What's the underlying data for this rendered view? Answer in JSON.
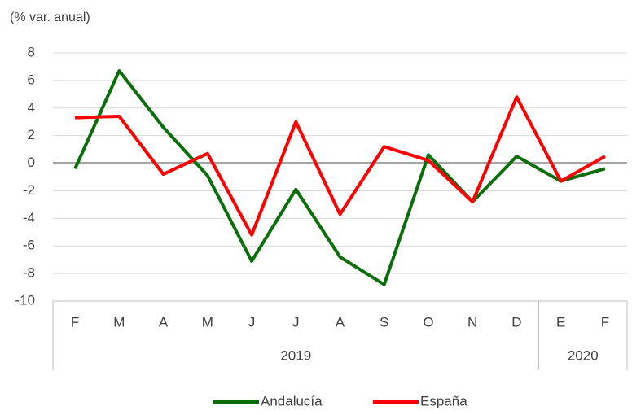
{
  "chart_data": {
    "type": "line",
    "y_axis_label": "(% var. anual)",
    "categories": [
      "F",
      "M",
      "A",
      "M",
      "J",
      "J",
      "A",
      "S",
      "O",
      "N",
      "D",
      "E",
      "F"
    ],
    "category_groups": [
      {
        "label": "2019",
        "span": 11
      },
      {
        "label": "2020",
        "span": 2
      }
    ],
    "series": [
      {
        "name": "Andalucía",
        "color": "#0b6e0b",
        "values": [
          -0.4,
          6.7,
          2.6,
          -0.9,
          -7.1,
          -1.9,
          -6.8,
          -8.8,
          0.6,
          -2.8,
          0.5,
          -1.3,
          -0.4
        ]
      },
      {
        "name": "España",
        "color": "#ff0000",
        "values": [
          3.3,
          3.4,
          -0.8,
          0.7,
          -5.2,
          3.0,
          -3.7,
          1.2,
          0.2,
          -2.8,
          4.8,
          -1.3,
          0.5
        ]
      }
    ],
    "ylim": [
      -10,
      8
    ],
    "yticks": [
      -10,
      -8,
      -6,
      -4,
      -2,
      0,
      2,
      4,
      6,
      8
    ],
    "grid": true,
    "legend": "bottom"
  }
}
